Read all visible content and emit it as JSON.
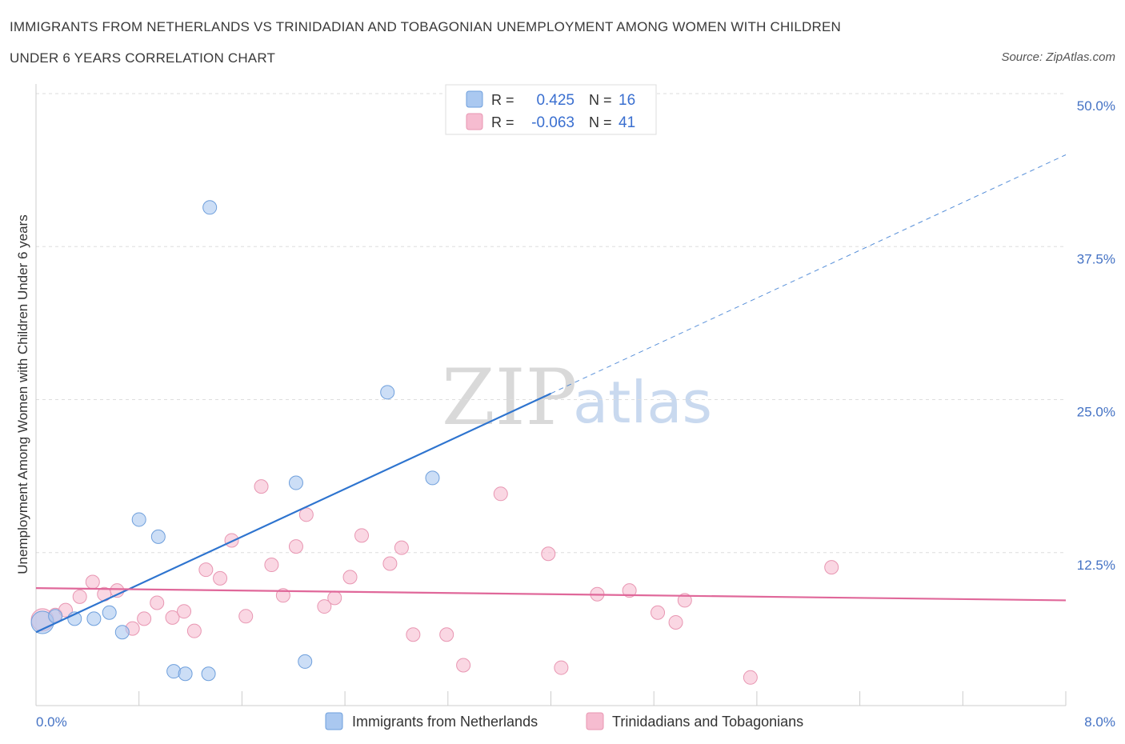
{
  "title_line1": "IMMIGRANTS FROM NETHERLANDS VS TRINIDADIAN AND TOBAGONIAN UNEMPLOYMENT AMONG WOMEN WITH CHILDREN",
  "title_line2": "UNDER 6 YEARS CORRELATION CHART",
  "source": "Source: ZipAtlas.com",
  "watermark": {
    "part1": "ZIP",
    "part2": "atlas"
  },
  "legend_box": {
    "r_label": "R =",
    "n_label": "N =",
    "rows": [
      {
        "r": "0.425",
        "n": "16",
        "color": "#aac8f0"
      },
      {
        "r": "-0.063",
        "n": "41",
        "color": "#f6bcd0"
      }
    ]
  },
  "chart_data": {
    "type": "scatter",
    "title": "IMMIGRANTS FROM NETHERLANDS VS TRINIDADIAN AND TOBAGONIAN UNEMPLOYMENT AMONG WOMEN WITH CHILDREN UNDER 6 YEARS CORRELATION CHART",
    "xlabel": "",
    "ylabel": "Unemployment Among Women with Children Under 6 years",
    "xlim": [
      0,
      8
    ],
    "ylim": [
      0,
      50
    ],
    "x_tick_labels": {
      "min": "0.0%",
      "max": "8.0%"
    },
    "y_ticks": [
      {
        "value": 12.5,
        "label": "12.5%"
      },
      {
        "value": 25,
        "label": "25.0%"
      },
      {
        "value": 37.5,
        "label": "37.5%"
      },
      {
        "value": 50,
        "label": "50.0%"
      }
    ],
    "grid": true,
    "legend_position": "bottom",
    "series": [
      {
        "name": "Immigrants from Netherlands",
        "color": "#aac8f0",
        "stroke": "#6e9fdc",
        "line_color": "#2e74cf",
        "r": 0.425,
        "n": 16,
        "trend": {
          "x0": 0.0,
          "y0": 6.0,
          "x_solid_end": 4.0,
          "x1": 8.0,
          "y1": 45.0
        },
        "points": [
          {
            "x": 0.05,
            "y": 6.8,
            "size": "large"
          },
          {
            "x": 0.15,
            "y": 7.3
          },
          {
            "x": 0.3,
            "y": 7.1
          },
          {
            "x": 0.45,
            "y": 7.1
          },
          {
            "x": 0.57,
            "y": 7.6
          },
          {
            "x": 0.67,
            "y": 6.0
          },
          {
            "x": 0.8,
            "y": 15.2
          },
          {
            "x": 0.95,
            "y": 13.8
          },
          {
            "x": 1.07,
            "y": 2.8
          },
          {
            "x": 1.16,
            "y": 2.6
          },
          {
            "x": 1.34,
            "y": 2.6
          },
          {
            "x": 1.35,
            "y": 40.7
          },
          {
            "x": 2.02,
            "y": 18.2
          },
          {
            "x": 2.09,
            "y": 3.6
          },
          {
            "x": 2.73,
            "y": 25.6
          },
          {
            "x": 3.08,
            "y": 18.6
          }
        ]
      },
      {
        "name": "Trinidadians and Tobagonians",
        "color": "#f6bcd0",
        "stroke": "#e896b2",
        "line_color": "#e0689a",
        "r": -0.063,
        "n": 41,
        "trend": {
          "x0": 0.0,
          "y0": 9.6,
          "x1": 8.0,
          "y1": 8.6
        },
        "points": [
          {
            "x": 0.05,
            "y": 7.0,
            "size": "large"
          },
          {
            "x": 0.15,
            "y": 7.4
          },
          {
            "x": 0.23,
            "y": 7.8
          },
          {
            "x": 0.34,
            "y": 8.9
          },
          {
            "x": 0.44,
            "y": 10.1
          },
          {
            "x": 0.53,
            "y": 9.1
          },
          {
            "x": 0.63,
            "y": 9.4
          },
          {
            "x": 0.75,
            "y": 6.3
          },
          {
            "x": 0.84,
            "y": 7.1
          },
          {
            "x": 0.94,
            "y": 8.4
          },
          {
            "x": 1.06,
            "y": 7.2
          },
          {
            "x": 1.15,
            "y": 7.7
          },
          {
            "x": 1.23,
            "y": 6.1
          },
          {
            "x": 1.32,
            "y": 11.1
          },
          {
            "x": 1.43,
            "y": 10.4
          },
          {
            "x": 1.52,
            "y": 13.5
          },
          {
            "x": 1.63,
            "y": 7.3
          },
          {
            "x": 1.75,
            "y": 17.9
          },
          {
            "x": 1.83,
            "y": 11.5
          },
          {
            "x": 1.92,
            "y": 9.0
          },
          {
            "x": 2.02,
            "y": 13.0
          },
          {
            "x": 2.1,
            "y": 15.6
          },
          {
            "x": 2.24,
            "y": 8.1
          },
          {
            "x": 2.32,
            "y": 8.8
          },
          {
            "x": 2.44,
            "y": 10.5
          },
          {
            "x": 2.53,
            "y": 13.9
          },
          {
            "x": 2.75,
            "y": 11.6
          },
          {
            "x": 2.84,
            "y": 12.9
          },
          {
            "x": 2.93,
            "y": 5.8
          },
          {
            "x": 3.19,
            "y": 5.8
          },
          {
            "x": 3.32,
            "y": 3.3
          },
          {
            "x": 3.61,
            "y": 17.3
          },
          {
            "x": 3.98,
            "y": 12.4
          },
          {
            "x": 4.08,
            "y": 3.1
          },
          {
            "x": 4.36,
            "y": 9.1
          },
          {
            "x": 4.61,
            "y": 9.4
          },
          {
            "x": 4.83,
            "y": 7.6
          },
          {
            "x": 4.97,
            "y": 6.8
          },
          {
            "x": 5.04,
            "y": 8.6
          },
          {
            "x": 5.55,
            "y": 2.3
          },
          {
            "x": 6.18,
            "y": 11.3
          }
        ]
      }
    ]
  }
}
